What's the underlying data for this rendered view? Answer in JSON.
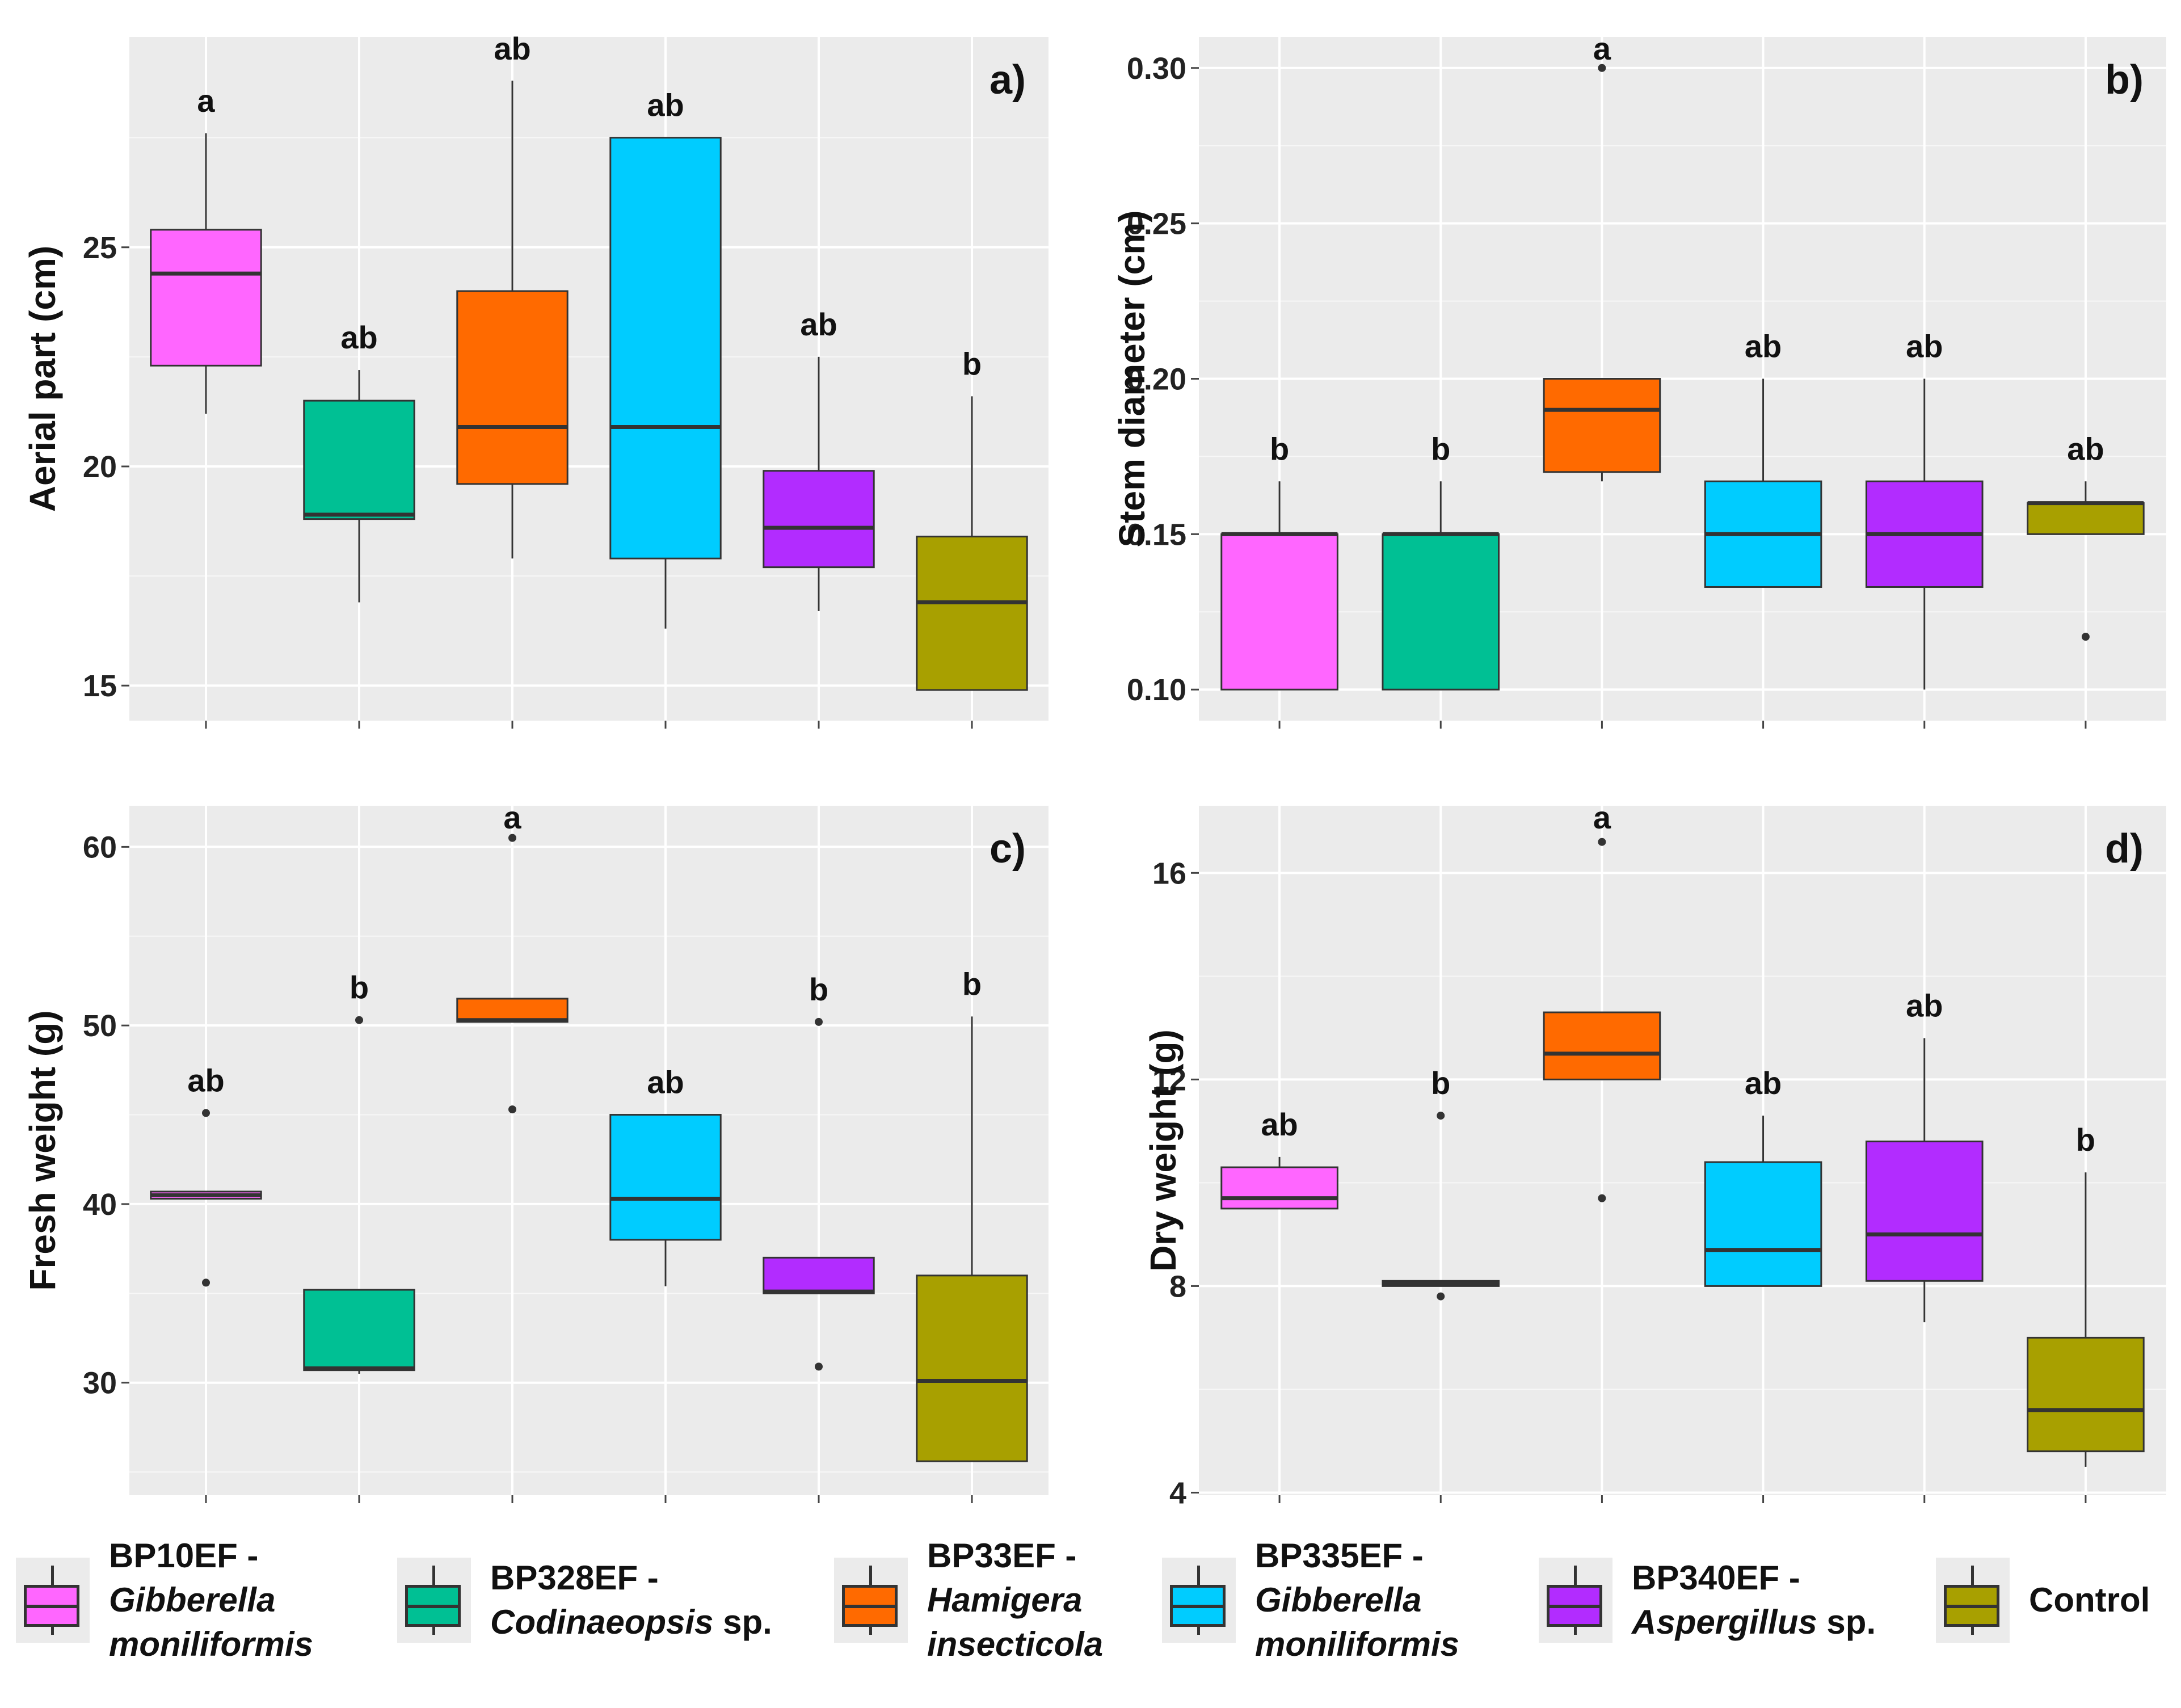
{
  "chart_data": [
    {
      "type": "box",
      "panel_label": "a)",
      "ylabel": "Aerial part (cm)",
      "ylim": [
        14.2,
        29.8
      ],
      "yticks": [
        15,
        20,
        25
      ],
      "ytick_labels": [
        "15",
        "20",
        "25"
      ],
      "groups": [
        {
          "name": "BP10EF",
          "color": "#ff66ff",
          "whisker_low": 21.2,
          "q1": 22.3,
          "median": 24.4,
          "q3": 25.4,
          "whisker_high": 27.6,
          "outliers": [],
          "letter": "a"
        },
        {
          "name": "BP328EF",
          "color": "#00c094",
          "whisker_low": 16.9,
          "q1": 18.8,
          "median": 18.9,
          "q3": 21.5,
          "whisker_high": 22.2,
          "outliers": [],
          "letter": "ab"
        },
        {
          "name": "BP33EF",
          "color": "#ff6a00",
          "whisker_low": 17.9,
          "q1": 19.6,
          "median": 20.9,
          "q3": 24.0,
          "whisker_high": 28.8,
          "outliers": [],
          "letter": "ab"
        },
        {
          "name": "BP335EF",
          "color": "#00ccff",
          "whisker_low": 16.3,
          "q1": 17.9,
          "median": 20.9,
          "q3": 27.5,
          "whisker_high": 27.5,
          "outliers": [],
          "letter": "ab"
        },
        {
          "name": "BP340EF",
          "color": "#b22cff",
          "whisker_low": 16.7,
          "q1": 17.7,
          "median": 18.6,
          "q3": 19.9,
          "whisker_high": 22.5,
          "outliers": [],
          "letter": "ab"
        },
        {
          "name": "Control",
          "color": "#a8a000",
          "whisker_low": 14.9,
          "q1": 14.9,
          "median": 16.9,
          "q3": 18.4,
          "whisker_high": 21.6,
          "outliers": [],
          "letter": "b"
        }
      ]
    },
    {
      "type": "box",
      "panel_label": "b)",
      "ylabel": "Stem diameter (cm)",
      "ylim": [
        0.09,
        0.31
      ],
      "yticks": [
        0.1,
        0.15,
        0.2,
        0.25,
        0.3
      ],
      "ytick_labels": [
        "0.10",
        "0.15",
        "0.20",
        "0.25",
        "0.30"
      ],
      "groups": [
        {
          "name": "BP10EF",
          "color": "#ff66ff",
          "whisker_low": 0.1,
          "q1": 0.1,
          "median": 0.15,
          "q3": 0.15,
          "whisker_high": 0.167,
          "outliers": [],
          "letter": "b"
        },
        {
          "name": "BP328EF",
          "color": "#00c094",
          "whisker_low": 0.1,
          "q1": 0.1,
          "median": 0.15,
          "q3": 0.15,
          "whisker_high": 0.167,
          "outliers": [],
          "letter": "b"
        },
        {
          "name": "BP33EF",
          "color": "#ff6a00",
          "whisker_low": 0.167,
          "q1": 0.17,
          "median": 0.19,
          "q3": 0.2,
          "whisker_high": 0.2,
          "outliers": [
            0.3
          ],
          "letter": "a"
        },
        {
          "name": "BP335EF",
          "color": "#00ccff",
          "whisker_low": 0.133,
          "q1": 0.133,
          "median": 0.15,
          "q3": 0.167,
          "whisker_high": 0.2,
          "outliers": [],
          "letter": "ab"
        },
        {
          "name": "BP340EF",
          "color": "#b22cff",
          "whisker_low": 0.1,
          "q1": 0.133,
          "median": 0.15,
          "q3": 0.167,
          "whisker_high": 0.2,
          "outliers": [],
          "letter": "ab"
        },
        {
          "name": "Control",
          "color": "#a8a000",
          "whisker_low": 0.15,
          "q1": 0.15,
          "median": 0.16,
          "q3": 0.16,
          "whisker_high": 0.167,
          "outliers": [
            0.117
          ],
          "letter": "ab"
        }
      ]
    },
    {
      "type": "box",
      "panel_label": "c)",
      "ylabel": "Fresh weight (g)",
      "ylim": [
        23.7,
        62.3
      ],
      "yticks": [
        30,
        40,
        50,
        60
      ],
      "ytick_labels": [
        "30",
        "40",
        "50",
        "60"
      ],
      "groups": [
        {
          "name": "BP10EF",
          "color": "#ff66ff",
          "whisker_low": 40.3,
          "q1": 40.3,
          "median": 40.5,
          "q3": 40.7,
          "whisker_high": 40.7,
          "outliers": [
            45.1,
            35.6
          ],
          "letter": "ab"
        },
        {
          "name": "BP328EF",
          "color": "#00c094",
          "whisker_low": 30.5,
          "q1": 30.7,
          "median": 30.8,
          "q3": 35.2,
          "whisker_high": 35.2,
          "outliers": [
            50.3
          ],
          "letter": "b"
        },
        {
          "name": "BP33EF",
          "color": "#ff6a00",
          "whisker_low": 50.2,
          "q1": 50.2,
          "median": 50.3,
          "q3": 51.5,
          "whisker_high": 51.5,
          "outliers": [
            60.5,
            45.3
          ],
          "letter": "a"
        },
        {
          "name": "BP335EF",
          "color": "#00ccff",
          "whisker_low": 35.4,
          "q1": 38.0,
          "median": 40.3,
          "q3": 45.0,
          "whisker_high": 45.0,
          "outliers": [],
          "letter": "ab"
        },
        {
          "name": "BP340EF",
          "color": "#b22cff",
          "whisker_low": 35.0,
          "q1": 35.0,
          "median": 35.1,
          "q3": 37.0,
          "whisker_high": 37.0,
          "outliers": [
            50.2,
            30.9
          ],
          "letter": "b"
        },
        {
          "name": "Control",
          "color": "#a8a000",
          "whisker_low": 25.6,
          "q1": 25.6,
          "median": 30.1,
          "q3": 36.0,
          "whisker_high": 50.5,
          "outliers": [],
          "letter": "b"
        }
      ]
    },
    {
      "type": "box",
      "panel_label": "d)",
      "ylabel": "Dry weight (g)",
      "ylim": [
        3.95,
        17.3
      ],
      "yticks": [
        4,
        8,
        12,
        16
      ],
      "ytick_labels": [
        "4",
        "8",
        "12",
        "16"
      ],
      "groups": [
        {
          "name": "BP10EF",
          "color": "#ff66ff",
          "whisker_low": 9.5,
          "q1": 9.5,
          "median": 9.7,
          "q3": 10.3,
          "whisker_high": 10.5,
          "outliers": [],
          "letter": "ab"
        },
        {
          "name": "BP328EF",
          "color": "#00c094",
          "whisker_low": 8.0,
          "q1": 8.0,
          "median": 8.05,
          "q3": 8.1,
          "whisker_high": 8.1,
          "outliers": [
            11.3,
            7.8
          ],
          "letter": "b"
        },
        {
          "name": "BP33EF",
          "color": "#ff6a00",
          "whisker_low": 12.0,
          "q1": 12.0,
          "median": 12.5,
          "q3": 13.3,
          "whisker_high": 13.3,
          "outliers": [
            16.6,
            9.7
          ],
          "letter": "a"
        },
        {
          "name": "BP335EF",
          "color": "#00ccff",
          "whisker_low": 8.0,
          "q1": 8.0,
          "median": 8.7,
          "q3": 10.4,
          "whisker_high": 11.3,
          "outliers": [],
          "letter": "ab"
        },
        {
          "name": "BP340EF",
          "color": "#b22cff",
          "whisker_low": 7.3,
          "q1": 8.1,
          "median": 9.0,
          "q3": 10.8,
          "whisker_high": 12.8,
          "outliers": [],
          "letter": "ab"
        },
        {
          "name": "Control",
          "color": "#a8a000",
          "whisker_low": 4.5,
          "q1": 4.8,
          "median": 5.6,
          "q3": 7.0,
          "whisker_high": 10.2,
          "outliers": [],
          "letter": "b"
        }
      ]
    }
  ],
  "legend": {
    "items": [
      {
        "code": "BP10EF -",
        "species": "Gibberella moniliformis",
        "species_line1": "Gibberella",
        "species_line2": "moniliformis",
        "suffix": "",
        "color": "#ff66ff"
      },
      {
        "code": "BP328EF -",
        "species": "Codinaeopsis",
        "species_line1": "Codinaeopsis",
        "species_line2": "",
        "suffix": " sp.",
        "color": "#00c094"
      },
      {
        "code": "BP33EF -",
        "species": "Hamigera insecticola",
        "species_line1": "Hamigera",
        "species_line2": "insecticola",
        "suffix": "",
        "color": "#ff6a00"
      },
      {
        "code": "BP335EF -",
        "species": "Gibberella moniliformis",
        "species_line1": "Gibberella",
        "species_line2": "moniliformis",
        "suffix": "",
        "color": "#00ccff"
      },
      {
        "code": "BP340EF -",
        "species": "Aspergillus",
        "species_line1": "Aspergillus",
        "species_line2": "",
        "suffix": " sp.",
        "color": "#b22cff"
      },
      {
        "code": "Control",
        "species": "",
        "species_line1": "",
        "species_line2": "",
        "suffix": "",
        "color": "#a8a000"
      }
    ]
  }
}
